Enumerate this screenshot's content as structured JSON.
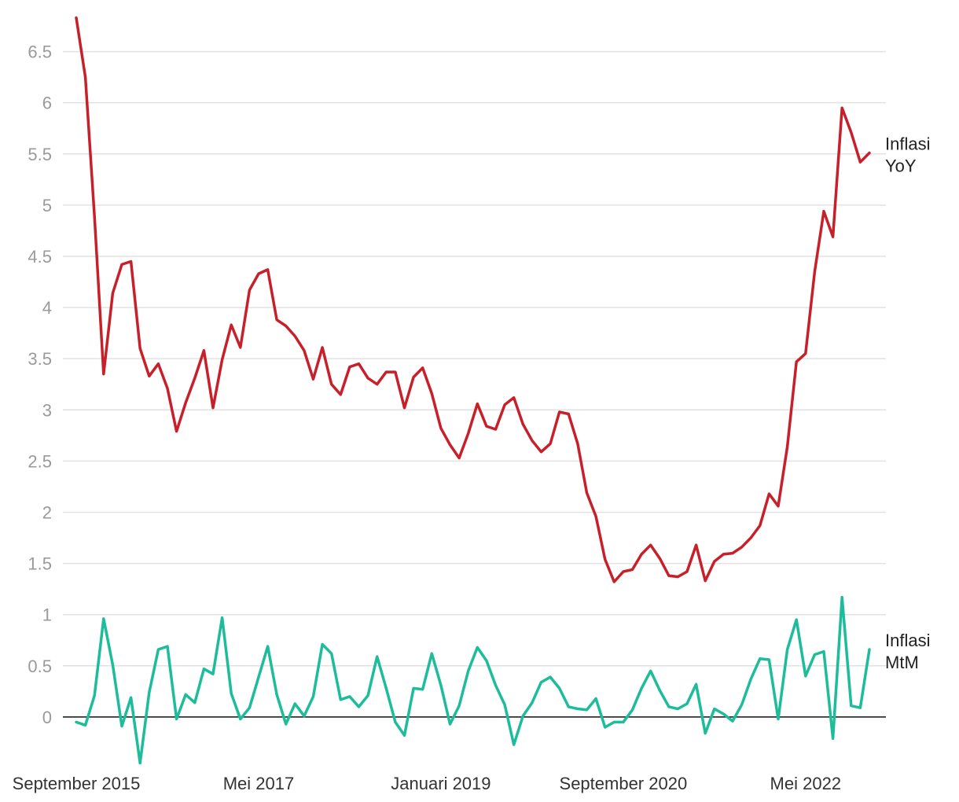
{
  "chart_data": {
    "type": "line",
    "title": "",
    "xlabel": "",
    "ylabel": "",
    "ylim": [
      -0.5,
      6.85
    ],
    "y_ticks": [
      0,
      0.5,
      1,
      1.5,
      2,
      2.5,
      3,
      3.5,
      4,
      4.5,
      5,
      5.5,
      6,
      6.5
    ],
    "y_tick_labels": [
      "0",
      "0.5",
      "1",
      "1.5",
      "2",
      "2.5",
      "3",
      "3.5",
      "4",
      "4.5",
      "5",
      "5.5",
      "6",
      "6.5"
    ],
    "grid": true,
    "x_tick_labels": [
      {
        "label": "September 2015",
        "index": 0
      },
      {
        "label": "Mei 2017",
        "index": 20
      },
      {
        "label": "Januari 2019",
        "index": 40
      },
      {
        "label": "September 2020",
        "index": 60
      },
      {
        "label": "Mei 2022",
        "index": 80
      }
    ],
    "series": [
      {
        "name": "Inflasi YoY",
        "label_lines": [
          "Inflasi",
          "YoY"
        ],
        "color": "#c8202a",
        "values": [
          6.83,
          6.25,
          4.89,
          3.35,
          4.14,
          4.42,
          4.45,
          3.6,
          3.33,
          3.45,
          3.21,
          2.79,
          3.07,
          3.31,
          3.58,
          3.02,
          3.49,
          3.83,
          3.61,
          4.17,
          4.33,
          4.37,
          3.88,
          3.82,
          3.72,
          3.58,
          3.3,
          3.61,
          3.25,
          3.15,
          3.42,
          3.45,
          3.31,
          3.25,
          3.37,
          3.37,
          3.02,
          3.32,
          3.41,
          3.16,
          2.82,
          2.66,
          2.53,
          2.77,
          3.06,
          2.84,
          2.81,
          3.05,
          3.12,
          2.86,
          2.7,
          2.59,
          2.67,
          2.98,
          2.96,
          2.67,
          2.19,
          1.96,
          1.54,
          1.32,
          1.42,
          1.44,
          1.59,
          1.68,
          1.55,
          1.38,
          1.37,
          1.42,
          1.68,
          1.33,
          1.52,
          1.59,
          1.6,
          1.66,
          1.75,
          1.87,
          2.18,
          2.06,
          2.64,
          3.47,
          3.55,
          4.35,
          4.94,
          4.69,
          5.95,
          5.71,
          5.42,
          5.51
        ]
      },
      {
        "name": "Inflasi MtM",
        "label_lines": [
          "Inflasi",
          "MtM"
        ],
        "color": "#1dbc9a",
        "values": [
          -0.05,
          -0.08,
          0.21,
          0.96,
          0.51,
          -0.09,
          0.19,
          -0.45,
          0.24,
          0.66,
          0.69,
          -0.02,
          0.22,
          0.14,
          0.47,
          0.42,
          0.97,
          0.23,
          -0.02,
          0.09,
          0.39,
          0.69,
          0.22,
          -0.07,
          0.13,
          0.01,
          0.2,
          0.71,
          0.62,
          0.17,
          0.2,
          0.1,
          0.21,
          0.59,
          0.28,
          -0.05,
          -0.18,
          0.28,
          0.27,
          0.62,
          0.31,
          -0.07,
          0.11,
          0.45,
          0.68,
          0.55,
          0.31,
          0.12,
          -0.27,
          0.01,
          0.14,
          0.34,
          0.39,
          0.28,
          0.1,
          0.08,
          0.07,
          0.18,
          -0.1,
          -0.05,
          -0.05,
          0.07,
          0.28,
          0.45,
          0.26,
          0.1,
          0.08,
          0.13,
          0.32,
          -0.16,
          0.08,
          0.03,
          -0.04,
          0.12,
          0.37,
          0.57,
          0.56,
          -0.02,
          0.66,
          0.95,
          0.4,
          0.61,
          0.64,
          -0.21,
          1.17,
          0.11,
          0.09,
          0.66
        ]
      }
    ]
  }
}
